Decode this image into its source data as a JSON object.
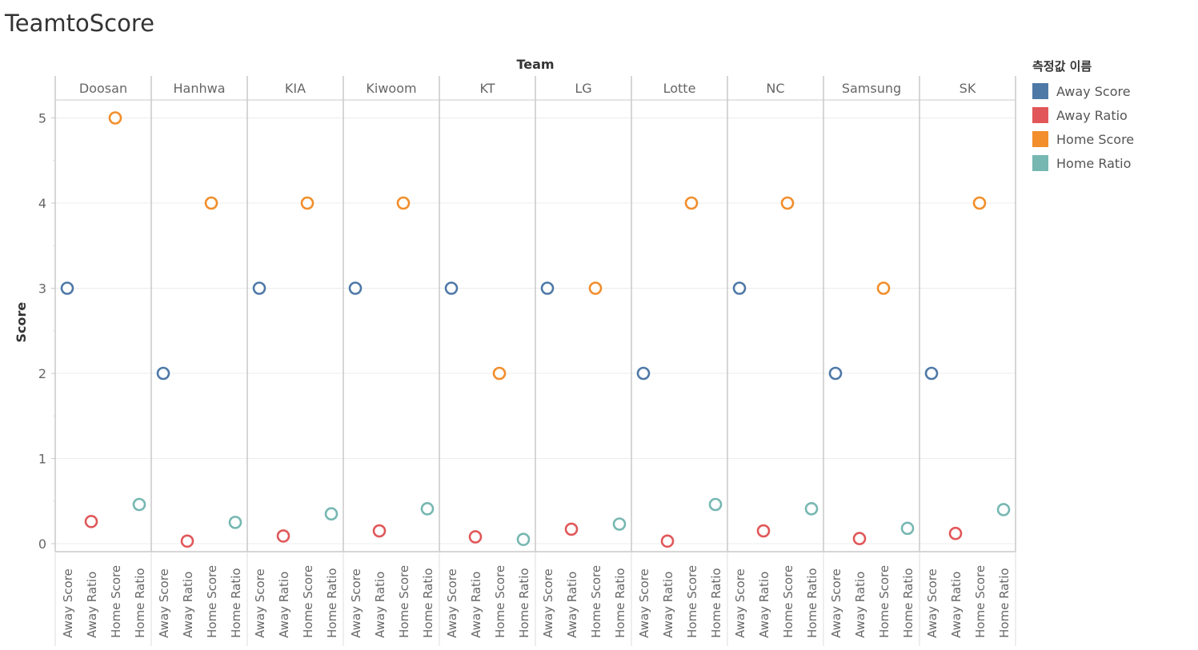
{
  "chart_data": {
    "type": "scatter",
    "title": "TeamtoScore",
    "column_header": "Team",
    "ylabel": "Score",
    "ylim": [
      0,
      5.3
    ],
    "yticks": [
      0,
      1,
      2,
      3,
      4,
      5
    ],
    "grid": true,
    "legend_position": "right",
    "legend_title": "측정값 이름",
    "measures": [
      "Away Score",
      "Away Ratio",
      "Home Score",
      "Home Ratio"
    ],
    "colors": {
      "Away Score": "#4e79a7",
      "Away Ratio": "#e15759",
      "Home Score": "#f28e2b",
      "Home Ratio": "#76b7b2"
    },
    "teams": [
      "Doosan",
      "Hanhwa",
      "KIA",
      "Kiwoom",
      "KT",
      "LG",
      "Lotte",
      "NC",
      "Samsung",
      "SK"
    ],
    "series": [
      {
        "name": "Away Score",
        "values": [
          3,
          2,
          3,
          3,
          3,
          3,
          2,
          3,
          2,
          2
        ]
      },
      {
        "name": "Away Ratio",
        "values": [
          0.26,
          0.03,
          0.09,
          0.15,
          0.08,
          0.17,
          0.03,
          0.15,
          0.06,
          0.12
        ]
      },
      {
        "name": "Home Score",
        "values": [
          5,
          4,
          4,
          4,
          2,
          3,
          4,
          4,
          3,
          4
        ]
      },
      {
        "name": "Home Ratio",
        "values": [
          0.46,
          0.25,
          0.35,
          0.41,
          0.05,
          0.23,
          0.46,
          0.41,
          0.18,
          0.4
        ]
      }
    ]
  }
}
